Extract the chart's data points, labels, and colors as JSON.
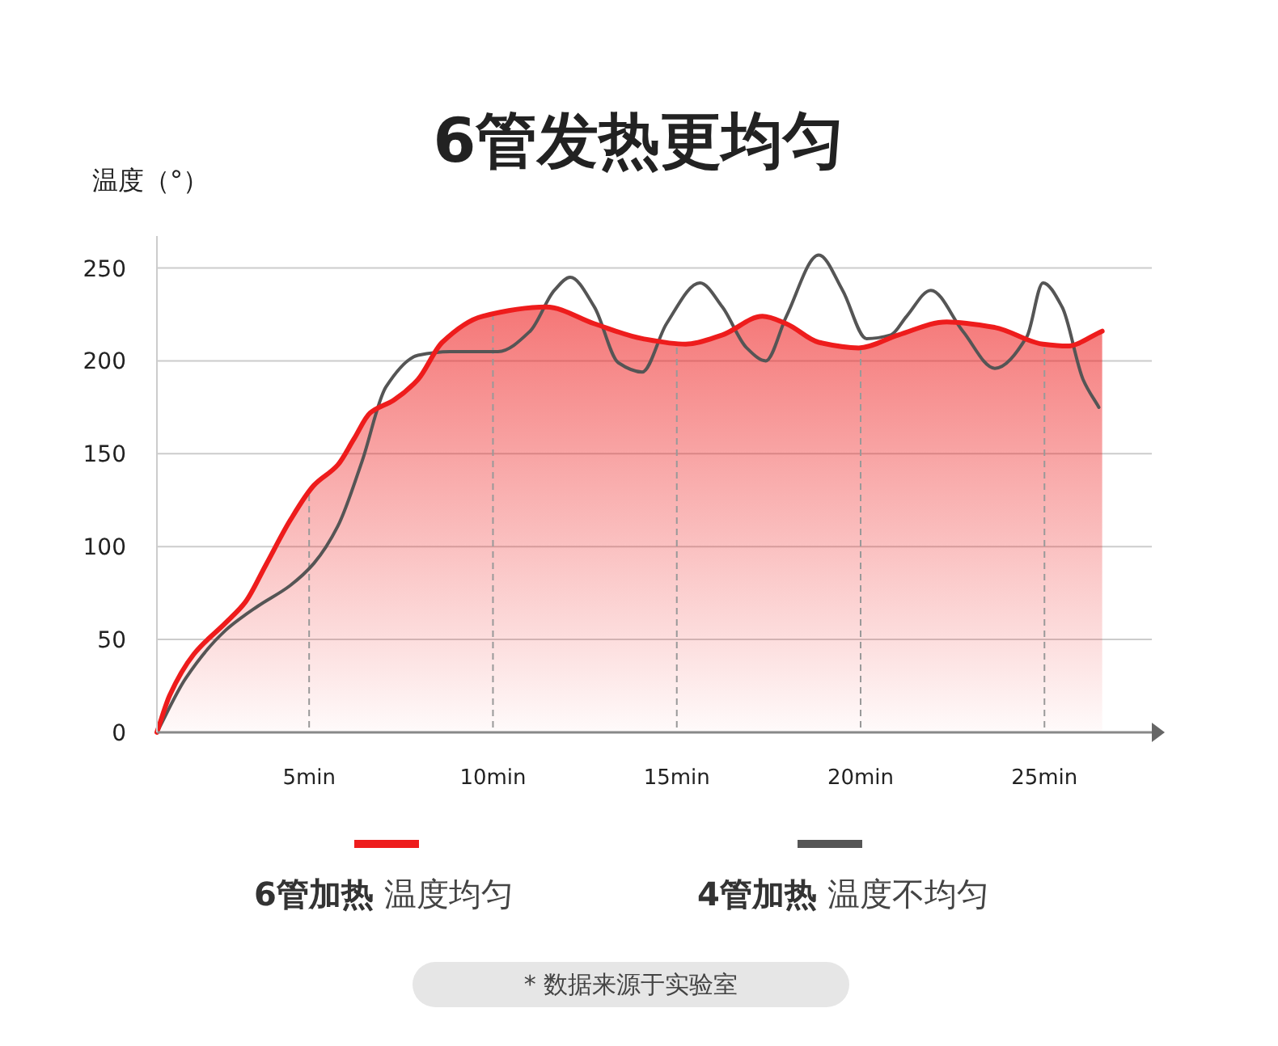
{
  "chart_data": {
    "type": "line",
    "title": "6管发热更均匀",
    "ylabel": "温度（°）",
    "xlim": [
      0.86,
      27.92
    ],
    "ylim": [
      0,
      262
    ],
    "xticks": [
      {
        "value": 5,
        "label": "5min"
      },
      {
        "value": 10,
        "label": "10min"
      },
      {
        "value": 15,
        "label": "15min"
      },
      {
        "value": 20,
        "label": "20min"
      },
      {
        "value": 25,
        "label": "25min"
      }
    ],
    "yticks": [
      0,
      50,
      100,
      150,
      200,
      250
    ],
    "grid": true,
    "legend": "bottom",
    "series": [
      {
        "name": "6管加热 温度均匀",
        "type": "area",
        "color": "#ee1c1c",
        "x": [
          0.86,
          1.21,
          1.86,
          2.73,
          3.26,
          3.82,
          4.48,
          5.13,
          5.78,
          6.22,
          6.66,
          7.31,
          7.96,
          8.62,
          9.71,
          11.45,
          12.76,
          14.06,
          15.24,
          16.24,
          17.33,
          17.98,
          18.86,
          19.95,
          21.03,
          22.34,
          23.65,
          24.96,
          25.61,
          26.57
        ],
        "values": [
          0,
          20,
          42,
          59,
          70,
          90,
          114,
          133,
          144,
          158,
          172,
          179,
          190,
          210,
          224,
          229,
          220,
          212,
          209,
          214,
          224,
          220,
          210,
          207,
          214,
          221,
          218,
          209,
          208,
          216
        ]
      },
      {
        "name": "4管加热 温度不均匀",
        "color": "#555555",
        "x": [
          0.86,
          1.64,
          2.73,
          3.61,
          4.48,
          5.13,
          5.78,
          6.44,
          7.09,
          7.96,
          8.83,
          10.14,
          11.01,
          11.67,
          12.1,
          12.76,
          13.41,
          14.06,
          14.72,
          15.63,
          16.24,
          16.9,
          17.42,
          17.98,
          18.86,
          19.51,
          20.16,
          20.82,
          21.25,
          21.91,
          22.78,
          23.65,
          24.52,
          24.96,
          25.48,
          26.05,
          26.48
        ],
        "values": [
          0,
          29,
          55,
          68,
          79,
          91,
          111,
          146,
          186,
          203,
          205,
          205,
          216,
          238,
          245,
          229,
          199,
          194,
          220,
          242,
          229,
          207,
          200,
          224,
          257,
          238,
          212,
          214,
          224,
          238,
          216,
          196,
          213,
          242,
          229,
          190,
          175
        ]
      }
    ],
    "annotations": [
      "* 数据来源于实验室"
    ]
  }
}
